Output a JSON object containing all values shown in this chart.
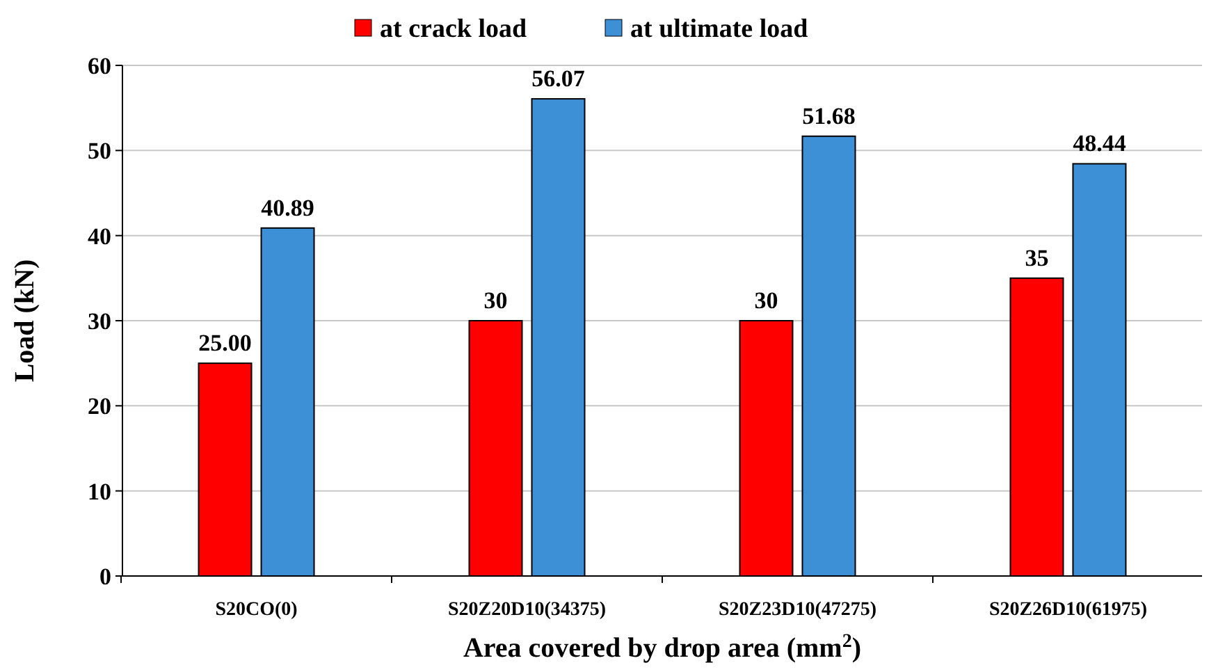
{
  "chart_data": {
    "type": "bar",
    "xlabel": "Area covered by drop area (mm$^{2}$)",
    "ylabel": "Load (kN)",
    "categories": [
      "S20CO(0)",
      "S20Z20D10(34375)",
      "S20Z23D10(47275)",
      "S20Z26D10(61975)"
    ],
    "series": [
      {
        "name": "at crack load",
        "color": "#ff0000",
        "values": [
          25,
          30,
          30,
          35
        ],
        "value_labels": [
          "25.00",
          "30",
          "30",
          "35"
        ]
      },
      {
        "name": "at ultimate load",
        "color": "#3d8fd6",
        "values": [
          40.89,
          56.07,
          51.68,
          48.44
        ],
        "value_labels": [
          "40.89",
          "56.07",
          "51.68",
          "48.44"
        ]
      }
    ],
    "ylim": [
      0,
      60
    ],
    "yticks": [
      0,
      10,
      20,
      30,
      40,
      50,
      60
    ],
    "grid": "y",
    "legend": "top"
  }
}
